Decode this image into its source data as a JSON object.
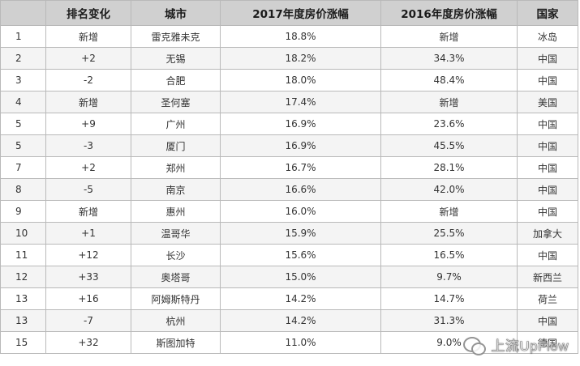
{
  "table": {
    "headers": [
      "排名变化",
      "城市",
      "2017年度房价涨幅",
      "2016年度房价涨幅",
      "国家"
    ],
    "rows": [
      {
        "rank": "1",
        "change": "新增",
        "city": "雷克雅未克",
        "rise_2017": "18.8%",
        "rise_2016": "新增",
        "country": "冰岛"
      },
      {
        "rank": "2",
        "change": "+2",
        "city": "无锡",
        "rise_2017": "18.2%",
        "rise_2016": "34.3%",
        "country": "中国"
      },
      {
        "rank": "3",
        "change": "-2",
        "city": "合肥",
        "rise_2017": "18.0%",
        "rise_2016": "48.4%",
        "country": "中国"
      },
      {
        "rank": "4",
        "change": "新增",
        "city": "圣何塞",
        "rise_2017": "17.4%",
        "rise_2016": "新增",
        "country": "美国"
      },
      {
        "rank": "5",
        "change": "+9",
        "city": "广州",
        "rise_2017": "16.9%",
        "rise_2016": "23.6%",
        "country": "中国"
      },
      {
        "rank": "5",
        "change": "-3",
        "city": "厦门",
        "rise_2017": "16.9%",
        "rise_2016": "45.5%",
        "country": "中国"
      },
      {
        "rank": "7",
        "change": "+2",
        "city": "郑州",
        "rise_2017": "16.7%",
        "rise_2016": "28.1%",
        "country": "中国"
      },
      {
        "rank": "8",
        "change": "-5",
        "city": "南京",
        "rise_2017": "16.6%",
        "rise_2016": "42.0%",
        "country": "中国"
      },
      {
        "rank": "9",
        "change": "新增",
        "city": "惠州",
        "rise_2017": "16.0%",
        "rise_2016": "新增",
        "country": "中国"
      },
      {
        "rank": "10",
        "change": "+1",
        "city": "温哥华",
        "rise_2017": "15.9%",
        "rise_2016": "25.5%",
        "country": "加拿大"
      },
      {
        "rank": "11",
        "change": "+12",
        "city": "长沙",
        "rise_2017": "15.6%",
        "rise_2016": "16.5%",
        "country": "中国"
      },
      {
        "rank": "12",
        "change": "+33",
        "city": "奥塔哥",
        "rise_2017": "15.0%",
        "rise_2016": "9.7%",
        "country": "新西兰"
      },
      {
        "rank": "13",
        "change": "+16",
        "city": "阿姆斯特丹",
        "rise_2017": "14.2%",
        "rise_2016": "14.7%",
        "country": "荷兰"
      },
      {
        "rank": "13",
        "change": "-7",
        "city": "杭州",
        "rise_2017": "14.2%",
        "rise_2016": "31.3%",
        "country": "中国"
      },
      {
        "rank": "15",
        "change": "+32",
        "city": "斯图加特",
        "rise_2017": "11.0%",
        "rise_2016": "9.0%",
        "country": "德国"
      }
    ]
  },
  "watermark": {
    "text": "上流UpFlow",
    "icon": "wechat-icon"
  }
}
